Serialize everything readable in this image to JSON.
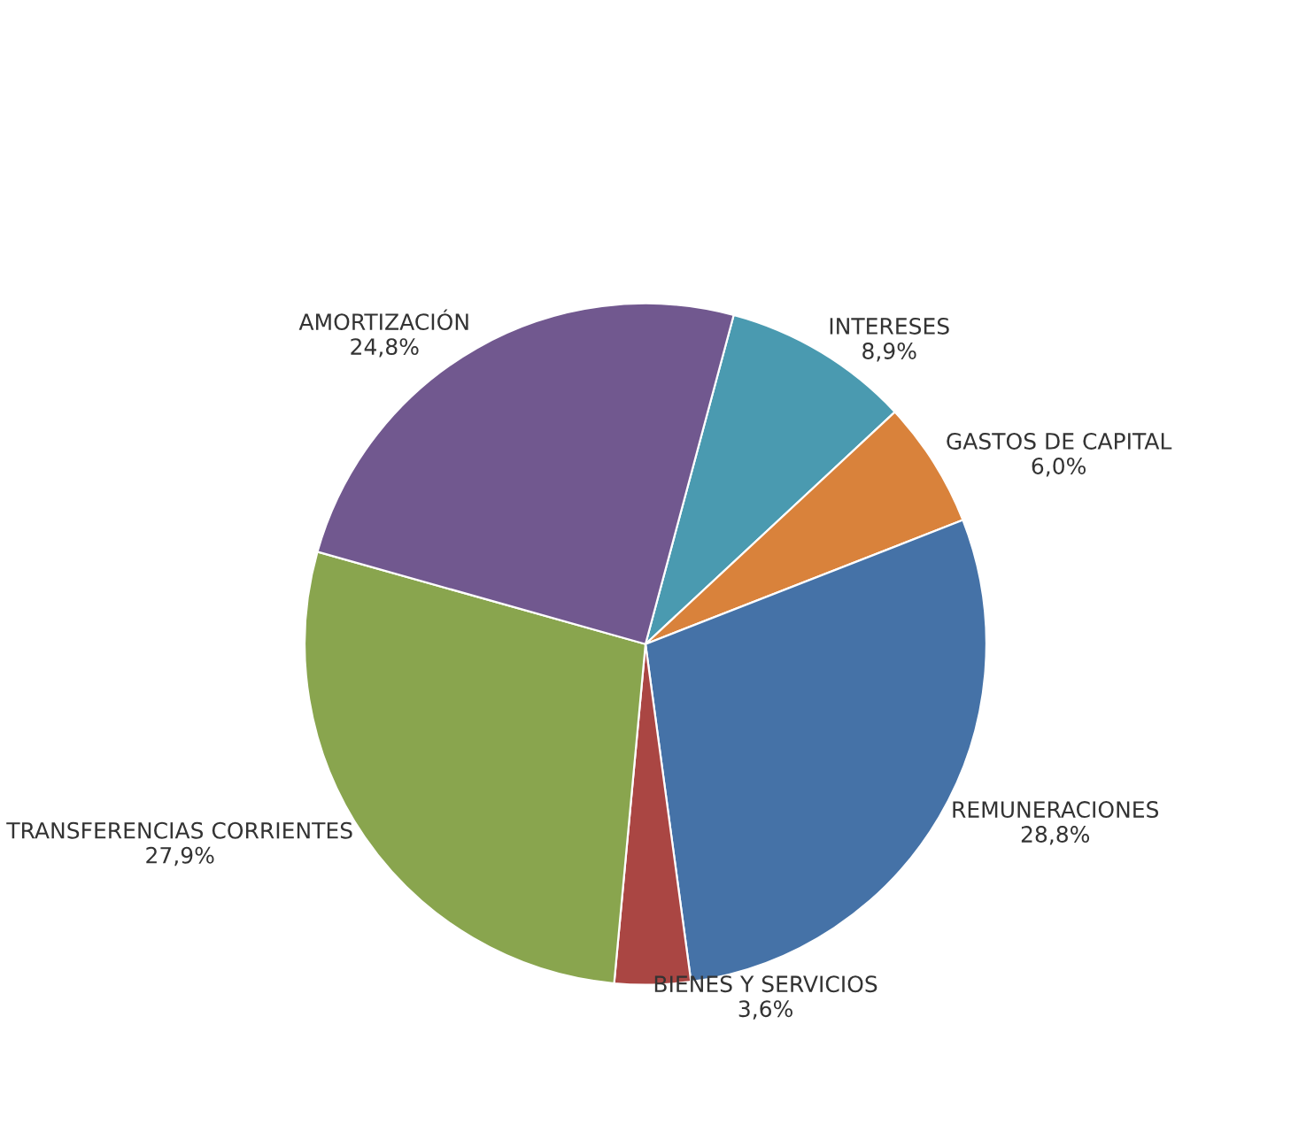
{
  "chart_data": {
    "type": "pie",
    "categories": [
      "INTERESES",
      "GASTOS DE CAPITAL",
      "REMUNERACIONES",
      "BIENES Y SERVICIOS",
      "TRANSFERENCIAS CORRIENTES",
      "AMORTIZACIÓN"
    ],
    "values": [
      8.9,
      6.0,
      28.8,
      3.6,
      27.9,
      24.8
    ],
    "colors": [
      "#4a9ab0",
      "#d9823b",
      "#4572a7",
      "#aa4643",
      "#89a54e",
      "#71588f"
    ],
    "value_labels": [
      "8,9%",
      "6,0%",
      "28,8%",
      "3,6%",
      "27,9%",
      "24,8%"
    ],
    "legend": false
  }
}
